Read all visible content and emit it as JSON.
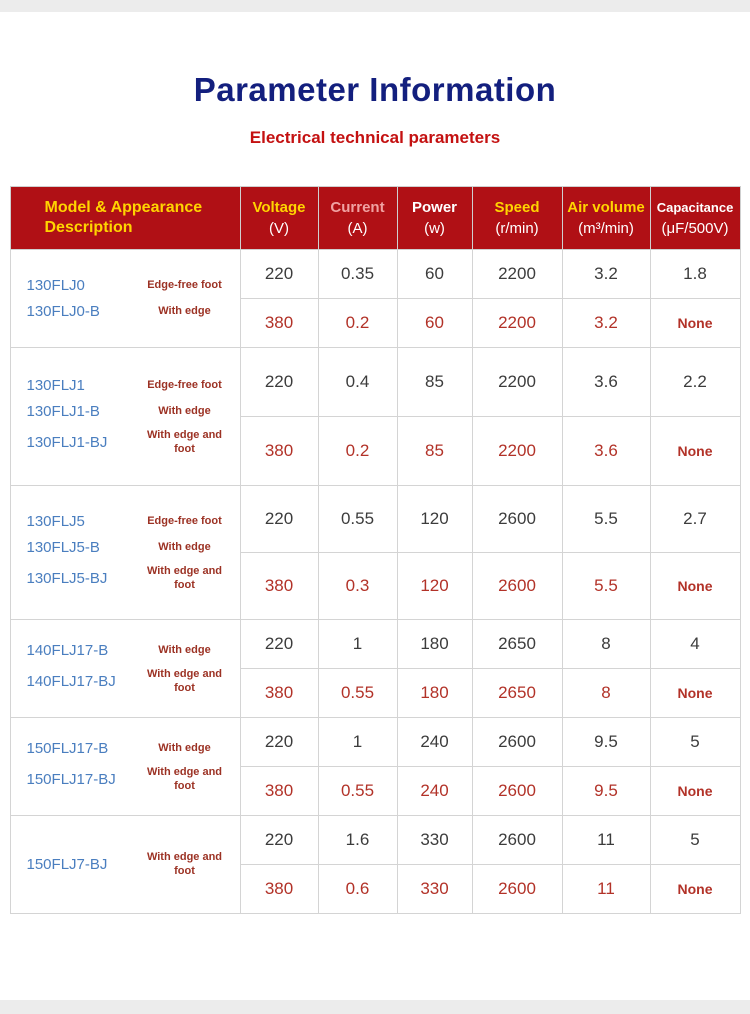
{
  "page": {
    "title": "Parameter Information",
    "subtitle": "Electrical technical parameters"
  },
  "colors": {
    "title_navy": "#131f7e",
    "subtitle_red": "#c41111",
    "header_bg_red": "#b01015",
    "header_yellow": "#ffd400",
    "header_pink": "#f0a2a2",
    "header_white": "#ffffff",
    "model_blue": "#4a7ebf",
    "description_red": "#9c3224",
    "row_220_text": "#3c3c3c",
    "row_380_text": "#b23228",
    "none_red": "#cc0000"
  },
  "table": {
    "headers": [
      {
        "label": "Model & Appearance",
        "label2": "Description",
        "unit": "",
        "style": "yellow",
        "model": true,
        "small": false
      },
      {
        "label": "Voltage",
        "label2": "",
        "unit": "(V)",
        "style": "yellow",
        "model": false,
        "small": false
      },
      {
        "label": "Current",
        "label2": "",
        "unit": "(A)",
        "style": "pink",
        "model": false,
        "small": false
      },
      {
        "label": "Power",
        "label2": "",
        "unit": "(w)",
        "style": "white",
        "model": false,
        "small": false
      },
      {
        "label": "Speed",
        "label2": "",
        "unit": "(r/min)",
        "style": "yellow",
        "model": false,
        "small": false
      },
      {
        "label": "Air volume",
        "label2": "",
        "unit": "(m³/min)",
        "style": "yellow",
        "model": false,
        "small": false
      },
      {
        "label": "Capacitance",
        "label2": "",
        "unit": "(μF/500V)",
        "style": "white",
        "model": false,
        "small": true
      }
    ],
    "groups": [
      {
        "models": [
          {
            "name": "130FLJ0",
            "desc": "Edge-free foot"
          },
          {
            "name": "130FLJ0-B",
            "desc": "With edge"
          }
        ],
        "rows": [
          {
            "variant": "black",
            "values": [
              "220",
              "0.35",
              "60",
              "2200",
              "3.2",
              "1.8"
            ]
          },
          {
            "variant": "red",
            "values": [
              "380",
              "0.2",
              "60",
              "2200",
              "3.2",
              "None"
            ]
          }
        ]
      },
      {
        "models": [
          {
            "name": "130FLJ1",
            "desc": "Edge-free foot"
          },
          {
            "name": "130FLJ1-B",
            "desc": "With edge"
          },
          {
            "name": "130FLJ1-BJ",
            "desc": "With edge and foot"
          }
        ],
        "rows": [
          {
            "variant": "black",
            "values": [
              "220",
              "0.4",
              "85",
              "2200",
              "3.6",
              "2.2"
            ]
          },
          {
            "variant": "red",
            "values": [
              "380",
              "0.2",
              "85",
              "2200",
              "3.6",
              "None"
            ]
          }
        ]
      },
      {
        "models": [
          {
            "name": "130FLJ5",
            "desc": "Edge-free foot"
          },
          {
            "name": "130FLJ5-B",
            "desc": "With edge"
          },
          {
            "name": "130FLJ5-BJ",
            "desc": "With edge and foot"
          }
        ],
        "rows": [
          {
            "variant": "black",
            "values": [
              "220",
              "0.55",
              "120",
              "2600",
              "5.5",
              "2.7"
            ]
          },
          {
            "variant": "red",
            "values": [
              "380",
              "0.3",
              "120",
              "2600",
              "5.5",
              "None"
            ]
          }
        ]
      },
      {
        "models": [
          {
            "name": "140FLJ17-B",
            "desc": "With edge"
          },
          {
            "name": "140FLJ17-BJ",
            "desc": "With edge and foot"
          }
        ],
        "rows": [
          {
            "variant": "black",
            "values": [
              "220",
              "1",
              "180",
              "2650",
              "8",
              "4"
            ]
          },
          {
            "variant": "red",
            "values": [
              "380",
              "0.55",
              "180",
              "2650",
              "8",
              "None"
            ]
          }
        ]
      },
      {
        "models": [
          {
            "name": "150FLJ17-B",
            "desc": "With edge"
          },
          {
            "name": "150FLJ17-BJ",
            "desc": "With edge and foot"
          }
        ],
        "rows": [
          {
            "variant": "black",
            "values": [
              "220",
              "1",
              "240",
              "2600",
              "9.5",
              "5"
            ]
          },
          {
            "variant": "red",
            "values": [
              "380",
              "0.55",
              "240",
              "2600",
              "9.5",
              "None"
            ]
          }
        ]
      },
      {
        "models": [
          {
            "name": "150FLJ7-BJ",
            "desc": "With edge and foot"
          }
        ],
        "rows": [
          {
            "variant": "black",
            "values": [
              "220",
              "1.6",
              "330",
              "2600",
              "11",
              "5"
            ]
          },
          {
            "variant": "red",
            "values": [
              "380",
              "0.6",
              "330",
              "2600",
              "11",
              "None"
            ]
          }
        ]
      }
    ]
  }
}
